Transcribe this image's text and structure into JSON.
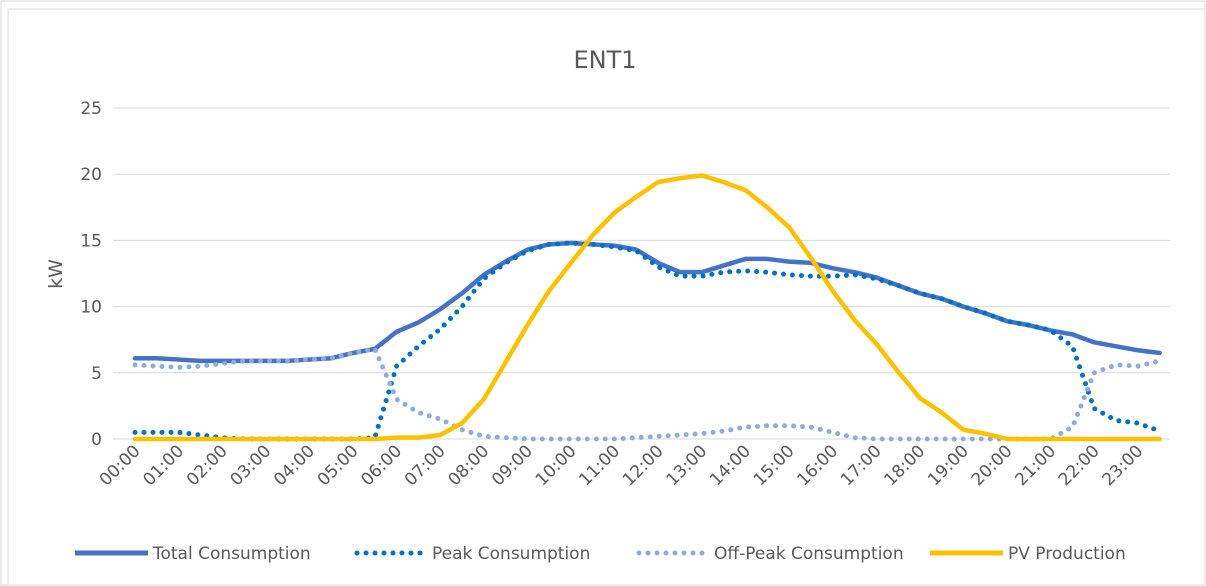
{
  "chart_data": {
    "type": "line",
    "title": "ENT1",
    "y_label": "kW",
    "categories": [
      "00:00",
      null,
      "01:00",
      null,
      "02:00",
      null,
      "03:00",
      null,
      "04:00",
      null,
      "05:00",
      null,
      "06:00",
      null,
      "07:00",
      null,
      "08:00",
      null,
      "09:00",
      null,
      "10:00",
      null,
      "11:00",
      null,
      "12:00",
      null,
      "13:00",
      null,
      "14:00",
      null,
      "15:00",
      null,
      "16:00",
      null,
      "17:00",
      null,
      "18:00",
      null,
      "19:00",
      null,
      "20:00",
      null,
      "21:00",
      null,
      "22:00",
      null,
      "23:00",
      null
    ],
    "ylim": [
      0,
      25
    ],
    "yticks": [
      0,
      5,
      10,
      15,
      20,
      25
    ],
    "grid": true,
    "legend": "bottom",
    "series": [
      {
        "name": "Total Consumption",
        "color": "#4472c4",
        "dash": "solid",
        "values": [
          6.1,
          6.1,
          6.0,
          5.9,
          5.9,
          5.9,
          5.9,
          5.9,
          6.0,
          6.1,
          6.5,
          6.8,
          8.1,
          8.8,
          9.8,
          11.0,
          12.4,
          13.4,
          14.3,
          14.7,
          14.8,
          14.7,
          14.6,
          14.3,
          13.3,
          12.6,
          12.6,
          13.1,
          13.6,
          13.6,
          13.4,
          13.3,
          12.9,
          12.6,
          12.2,
          11.6,
          11.0,
          10.6,
          10.0,
          9.5,
          8.9,
          8.6,
          8.2,
          7.9,
          7.3,
          7.0,
          6.7,
          6.5
        ]
      },
      {
        "name": "Peak Consumption",
        "color": "#0070c0",
        "dash": "dotted",
        "values": [
          0.5,
          0.5,
          0.5,
          0.3,
          0.1,
          0,
          0,
          0,
          0,
          0,
          0,
          0.1,
          5.5,
          7.0,
          8.3,
          10.0,
          12.1,
          13.3,
          14.2,
          14.7,
          14.8,
          14.7,
          14.5,
          14.2,
          13.0,
          12.3,
          12.3,
          12.6,
          12.7,
          12.6,
          12.4,
          12.3,
          12.3,
          12.4,
          12.1,
          11.6,
          11.0,
          10.6,
          10.0,
          9.5,
          8.9,
          8.6,
          8.2,
          7.0,
          2.3,
          1.4,
          1.2,
          0.6
        ]
      },
      {
        "name": "Off-Peak Consumption",
        "color": "#8faadc",
        "dash": "dotted",
        "values": [
          5.6,
          5.5,
          5.4,
          5.5,
          5.7,
          5.9,
          5.9,
          5.9,
          6.0,
          6.1,
          6.5,
          6.8,
          3.0,
          2.0,
          1.5,
          0.7,
          0.2,
          0.1,
          0,
          0,
          0,
          0,
          0,
          0.1,
          0.2,
          0.3,
          0.4,
          0.6,
          0.9,
          1.0,
          1.0,
          0.9,
          0.5,
          0.1,
          0,
          0,
          0,
          0,
          0,
          0,
          0,
          0,
          0,
          0.9,
          5.0,
          5.6,
          5.5,
          5.9
        ]
      },
      {
        "name": "PV Production",
        "color": "#ffc000",
        "dash": "solid",
        "values": [
          0,
          0,
          0,
          0,
          0,
          0,
          0,
          0,
          0,
          0,
          0,
          0,
          0.1,
          0.1,
          0.3,
          1.2,
          3.0,
          5.8,
          8.6,
          11.2,
          13.3,
          15.4,
          17.1,
          18.3,
          19.4,
          19.7,
          19.9,
          19.4,
          18.8,
          17.5,
          16.0,
          13.7,
          11.2,
          9.0,
          7.2,
          5.1,
          3.1,
          2.0,
          0.7,
          0.4,
          0,
          0,
          0,
          0,
          0,
          0,
          0,
          0
        ]
      }
    ]
  }
}
